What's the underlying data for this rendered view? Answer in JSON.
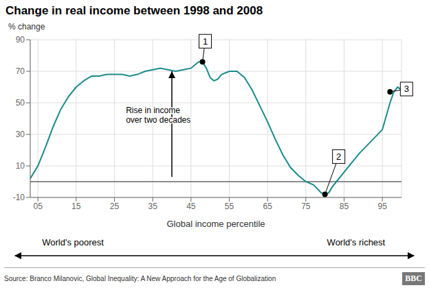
{
  "chart_data": {
    "type": "line",
    "title": "Change in real income between 1998 and 2008",
    "y_label": "% change",
    "x_label": "Global income percentile",
    "source": "Source: Branco Milanovic, Global Inequality: A New Approach for the Age of Globalization",
    "logo": "BBC",
    "x_left_label": "World's poorest",
    "x_right_label": "World's richest",
    "color": "#1a8a8a",
    "grid": true,
    "xlim": [
      3,
      100
    ],
    "ylim": [
      -10,
      90
    ],
    "xticks": [
      {
        "value": 5,
        "label": "05"
      },
      {
        "value": 15,
        "label": "15"
      },
      {
        "value": 25,
        "label": "25"
      },
      {
        "value": 35,
        "label": "35"
      },
      {
        "value": 45,
        "label": "45"
      },
      {
        "value": 55,
        "label": "55"
      },
      {
        "value": 65,
        "label": "65"
      },
      {
        "value": 75,
        "label": "75"
      },
      {
        "value": 85,
        "label": "85"
      },
      {
        "value": 95,
        "label": "95"
      }
    ],
    "yticks": [
      -10,
      10,
      30,
      50,
      70,
      90
    ],
    "hlines": [
      {
        "y": 0,
        "color": "#666666"
      }
    ],
    "annotations": [
      {
        "text": "1",
        "x": 48,
        "y": 76
      },
      {
        "text": "2",
        "x": 80,
        "y": -8
      },
      {
        "text": "3",
        "x": 97,
        "y": 57
      }
    ],
    "arrow": {
      "text": "Rise in income\nover two decades",
      "x": 40,
      "y_start": 3,
      "y_end": 70,
      "text_x": 28,
      "text_y": 42
    },
    "x": [
      3,
      5,
      7,
      9,
      11,
      13,
      15,
      17,
      19,
      21,
      23,
      25,
      27,
      29,
      31,
      33,
      35,
      37,
      39,
      41,
      43,
      45,
      47,
      48,
      49,
      50,
      51,
      52,
      53,
      55,
      57,
      59,
      61,
      63,
      65,
      67,
      69,
      71,
      73,
      75,
      77,
      79,
      80,
      81,
      82,
      83,
      84,
      85,
      87,
      89,
      91,
      93,
      95,
      97,
      98,
      99,
      100
    ],
    "values": [
      2,
      10,
      22,
      35,
      46,
      54,
      60,
      64,
      67,
      67,
      68,
      68,
      68,
      67,
      68,
      70,
      71,
      72,
      71,
      70,
      71,
      72,
      76,
      76,
      72,
      66,
      64,
      65,
      68,
      70,
      70,
      66,
      58,
      48,
      38,
      27,
      17,
      9,
      4,
      0,
      -2,
      -7,
      -8,
      -7,
      -3,
      0,
      3,
      6,
      12,
      18,
      23,
      28,
      33,
      50,
      57,
      60,
      58
    ]
  }
}
